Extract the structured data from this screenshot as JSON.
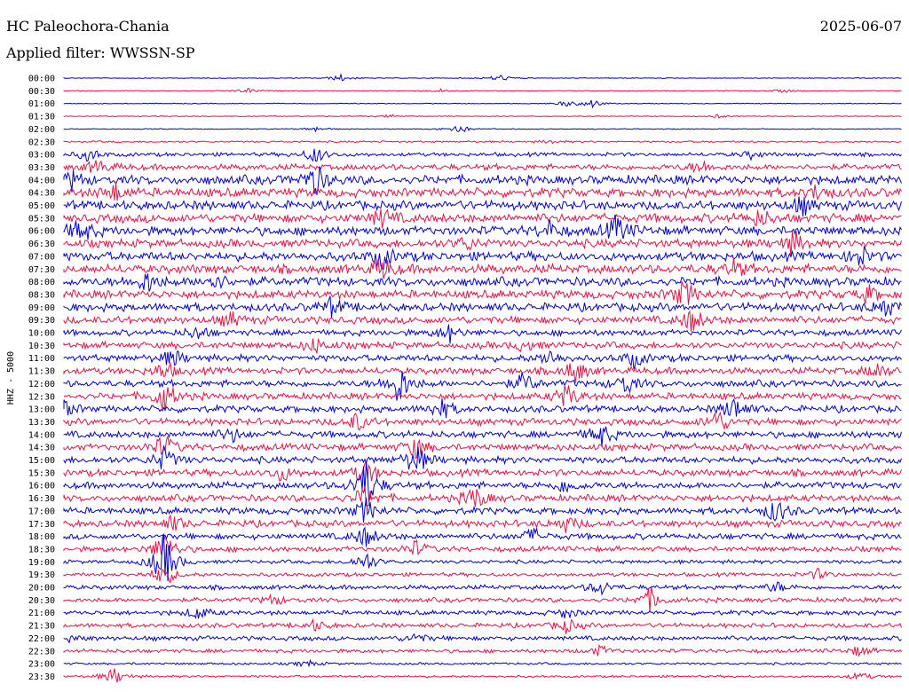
{
  "header": {
    "station": "HC Paleochora-Chania",
    "date": "2025-06-07",
    "filter": "Applied filter: WWSSN-SP"
  },
  "chart_data": {
    "type": "line",
    "title": "HC Paleochora-Chania",
    "ylabel": "HHZ - 5000",
    "colors": [
      "#0000dd",
      "#ee1144"
    ],
    "row_labels": [
      "00:00",
      "00:30",
      "01:00",
      "01:30",
      "02:00",
      "02:30",
      "03:00",
      "03:30",
      "04:00",
      "04:30",
      "05:00",
      "05:30",
      "06:00",
      "06:30",
      "07:00",
      "07:30",
      "08:00",
      "08:30",
      "09:00",
      "09:30",
      "10:00",
      "10:30",
      "11:00",
      "11:30",
      "12:00",
      "12:30",
      "13:00",
      "13:30",
      "14:00",
      "14:30",
      "15:00",
      "15:30",
      "16:00",
      "16:30",
      "17:00",
      "17:30",
      "18:00",
      "18:30",
      "19:00",
      "19:30",
      "20:00",
      "20:30",
      "21:00",
      "21:30",
      "22:00",
      "22:30",
      "23:00",
      "23:30"
    ],
    "row_noise": [
      0.5,
      0.5,
      0.5,
      0.6,
      0.6,
      1.2,
      2.5,
      4,
      6,
      6,
      6,
      6,
      6,
      5.5,
      6,
      6,
      6,
      5.5,
      5.5,
      5,
      4,
      4.5,
      4.5,
      4.5,
      4.5,
      4.5,
      4.5,
      4.5,
      4.5,
      4.5,
      4.5,
      4.5,
      4.5,
      4.5,
      4.5,
      4.5,
      4,
      3.5,
      2.5,
      2.5,
      3,
      3,
      3,
      3,
      3,
      2.5,
      1.5,
      1.5
    ],
    "events": [
      [
        [
          0.33,
          4
        ],
        [
          0.52,
          4
        ]
      ],
      [
        [
          0.22,
          3
        ],
        [
          0.45,
          2
        ],
        [
          0.86,
          2
        ]
      ],
      [
        [
          0.6,
          3
        ],
        [
          0.63,
          5
        ]
      ],
      [
        [
          0.39,
          2
        ],
        [
          0.78,
          2
        ]
      ],
      [
        [
          0.3,
          3
        ],
        [
          0.47,
          6
        ]
      ],
      [
        [
          0.58,
          2
        ]
      ],
      [
        [
          0.03,
          8
        ],
        [
          0.3,
          10
        ],
        [
          0.82,
          4
        ]
      ],
      [
        [
          0.04,
          8
        ],
        [
          0.76,
          7
        ]
      ],
      [
        [
          0.3,
          18
        ],
        [
          0.01,
          9
        ]
      ],
      [
        [
          0.06,
          10
        ],
        [
          0.9,
          9
        ]
      ],
      [
        [
          0.88,
          10
        ]
      ],
      [
        [
          0.38,
          10
        ],
        [
          0.83,
          9
        ]
      ],
      [
        [
          0.02,
          14
        ],
        [
          0.66,
          16
        ],
        [
          0.58,
          9
        ]
      ],
      [
        [
          0.87,
          14
        ],
        [
          0.48,
          8
        ]
      ],
      [
        [
          0.38,
          12
        ],
        [
          0.95,
          12
        ]
      ],
      [
        [
          0.38,
          12
        ],
        [
          0.8,
          9
        ]
      ],
      [
        [
          0.1,
          12
        ],
        [
          0.18,
          10
        ]
      ],
      [
        [
          0.74,
          16
        ],
        [
          0.96,
          9
        ]
      ],
      [
        [
          0.32,
          10
        ],
        [
          0.98,
          12
        ]
      ],
      [
        [
          0.75,
          14
        ],
        [
          0.2,
          8
        ]
      ],
      [
        [
          0.16,
          8
        ],
        [
          0.46,
          10
        ]
      ],
      [
        [
          0.3,
          8
        ],
        [
          0.55,
          7
        ]
      ],
      [
        [
          0.13,
          10
        ],
        [
          0.58,
          9
        ],
        [
          0.68,
          9
        ]
      ],
      [
        [
          0.12,
          10
        ],
        [
          0.61,
          14
        ],
        [
          0.97,
          9
        ]
      ],
      [
        [
          0.4,
          24
        ],
        [
          0.55,
          12
        ],
        [
          0.67,
          12
        ]
      ],
      [
        [
          0.12,
          18
        ],
        [
          0.6,
          14
        ]
      ],
      [
        [
          0.0,
          10
        ],
        [
          0.45,
          12
        ],
        [
          0.8,
          14
        ]
      ],
      [
        [
          0.78,
          14
        ],
        [
          0.35,
          10
        ]
      ],
      [
        [
          0.2,
          8
        ],
        [
          0.64,
          14
        ]
      ],
      [
        [
          0.12,
          14
        ],
        [
          0.42,
          12
        ]
      ],
      [
        [
          0.12,
          14
        ],
        [
          0.42,
          18
        ]
      ],
      [
        [
          0.36,
          14
        ],
        [
          0.26,
          9
        ]
      ],
      [
        [
          0.36,
          30
        ],
        [
          0.6,
          9
        ]
      ],
      [
        [
          0.36,
          14
        ],
        [
          0.49,
          14
        ]
      ],
      [
        [
          0.36,
          14
        ],
        [
          0.85,
          14
        ]
      ],
      [
        [
          0.13,
          9
        ],
        [
          0.6,
          9
        ]
      ],
      [
        [
          0.36,
          12
        ],
        [
          0.56,
          9
        ]
      ],
      [
        [
          0.12,
          22
        ],
        [
          0.42,
          9
        ]
      ],
      [
        [
          0.12,
          34
        ],
        [
          0.36,
          12
        ]
      ],
      [
        [
          0.12,
          14
        ],
        [
          0.9,
          6
        ]
      ],
      [
        [
          0.64,
          9
        ],
        [
          0.85,
          6
        ]
      ],
      [
        [
          0.7,
          14
        ],
        [
          0.25,
          6
        ]
      ],
      [
        [
          0.16,
          8
        ],
        [
          0.6,
          6
        ]
      ],
      [
        [
          0.6,
          8
        ],
        [
          0.3,
          6
        ]
      ],
      [
        [
          0.0,
          9
        ],
        [
          0.42,
          6
        ]
      ],
      [
        [
          0.64,
          6
        ],
        [
          0.95,
          6
        ]
      ],
      [
        [
          0.29,
          4
        ]
      ],
      [
        [
          0.06,
          10
        ],
        [
          0.95,
          5
        ]
      ]
    ]
  }
}
